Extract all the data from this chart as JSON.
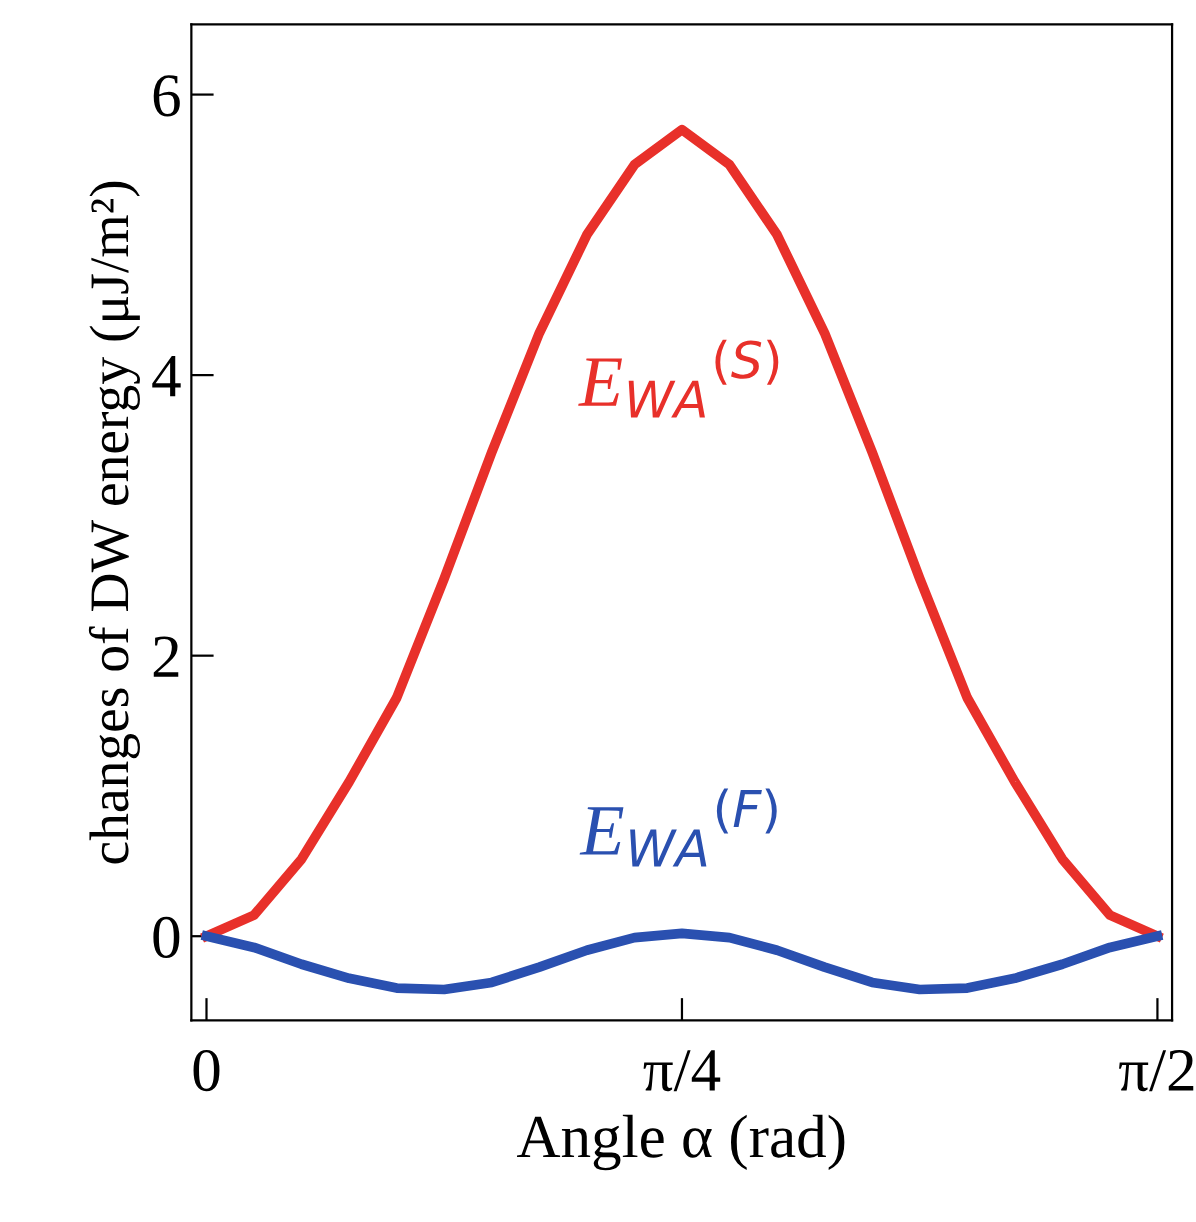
{
  "chart_data": {
    "type": "line",
    "xlabel": "Angle α (rad)",
    "ylabel": "changes of DW energy (μJ/m²)",
    "x": [
      0,
      0.0785,
      0.1571,
      0.2356,
      0.3142,
      0.3927,
      0.4712,
      0.5498,
      0.6283,
      0.7069,
      0.7854,
      0.8639,
      0.9425,
      1.021,
      1.0996,
      1.1781,
      1.2566,
      1.3352,
      1.4137,
      1.4923,
      1.5708
    ],
    "series": [
      {
        "name": "E$_{WA}$$^{(S)}$",
        "color": "#e8302a",
        "values": [
          0,
          0.15,
          0.55,
          1.1,
          1.7,
          2.55,
          3.45,
          4.3,
          5.0,
          5.5,
          5.75,
          5.5,
          5.0,
          4.3,
          3.45,
          2.55,
          1.7,
          1.1,
          0.55,
          0.15,
          0
        ]
      },
      {
        "name": "E$_{WA}$$^{(F)}$",
        "color": "#2a50b0",
        "values": [
          0,
          -0.08,
          -0.2,
          -0.3,
          -0.37,
          -0.38,
          -0.33,
          -0.22,
          -0.1,
          -0.01,
          0.02,
          -0.01,
          -0.1,
          -0.22,
          -0.33,
          -0.38,
          -0.37,
          -0.3,
          -0.2,
          -0.08,
          0
        ]
      }
    ],
    "xlim": [
      -0.025,
      1.595
    ],
    "ylim": [
      -0.6,
      6.5
    ],
    "xticks": [
      0,
      {
        "value": 0.7854,
        "label": "π/4"
      },
      {
        "value": 1.5708,
        "label": "π/2"
      }
    ],
    "yticks": [
      0,
      2,
      4,
      6
    ],
    "grid": false,
    "legend": false,
    "marker": "none",
    "line_style": "solid"
  }
}
